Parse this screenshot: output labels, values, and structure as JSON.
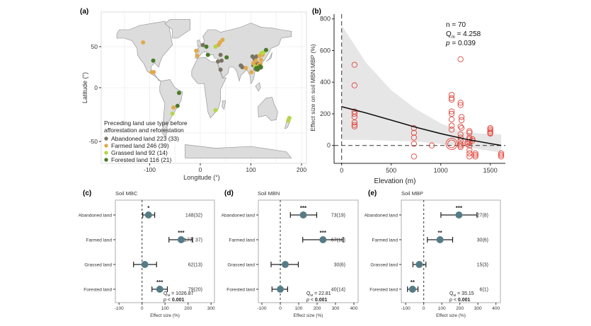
{
  "chart_data": [
    {
      "panel": "(a)",
      "type": "scatter",
      "subtype": "world map",
      "xlabel": "Longitude (°)",
      "ylabel": "Latitude (°)",
      "xticks": [
        -100,
        0,
        100,
        200
      ],
      "yticks": [
        50,
        0,
        -50
      ],
      "legend_title": [
        "Preceding land use type before",
        "afforestation and reforestation"
      ],
      "legend_position": "bottom-left",
      "series": [
        {
          "name": "Abandoned land 223 (33)",
          "color": "#7b7464",
          "points": [
            [
              5,
              52
            ],
            [
              40,
              40
            ],
            [
              42,
              33
            ],
            [
              40,
              22
            ],
            [
              80,
              27
            ],
            [
              83,
              25
            ],
            [
              103,
              38
            ],
            [
              107,
              35
            ],
            [
              111,
              38
            ],
            [
              105,
              27
            ],
            [
              109,
              23
            ],
            [
              112,
              30
            ],
            [
              35,
              32
            ]
          ]
        },
        {
          "name": "Farmed land 246 (39)",
          "color": "#e2a94b",
          "points": [
            [
              -113,
              55
            ],
            [
              -96,
              19
            ],
            [
              -92,
              19
            ],
            [
              -53,
              -23
            ],
            [
              -8,
              45
            ],
            [
              -6,
              39
            ],
            [
              36,
              52
            ],
            [
              39,
              55
            ],
            [
              44,
              58
            ],
            [
              101,
              19
            ],
            [
              105,
              30
            ],
            [
              110,
              33
            ],
            [
              116,
              28
            ],
            [
              120,
              34
            ],
            [
              117,
              39
            ],
            [
              119,
              29
            ],
            [
              90,
              24
            ],
            [
              123,
              40
            ]
          ]
        },
        {
          "name": "Grassed land 92 (14)",
          "color": "#b5d646",
          "points": [
            [
              -55,
              -30
            ],
            [
              30,
              -26
            ],
            [
              174,
              -38
            ],
            [
              176,
              -35
            ],
            [
              30,
              50
            ],
            [
              108,
              26
            ],
            [
              121,
              42
            ],
            [
              125,
              43
            ]
          ]
        },
        {
          "name": "Forested land 116 (21)",
          "color": "#4b7a2b",
          "points": [
            [
              -93,
              33
            ],
            [
              -42,
              -6
            ],
            [
              -45,
              -21
            ],
            [
              12,
              50
            ],
            [
              15,
              40
            ],
            [
              52,
              37
            ],
            [
              130,
              46
            ],
            [
              111,
              24
            ],
            [
              115,
              24
            ],
            [
              120,
              25
            ],
            [
              113,
              22
            ],
            [
              118,
              26
            ]
          ]
        }
      ]
    },
    {
      "panel": "(b)",
      "type": "scatter",
      "xlabel": "Elevation (m)",
      "ylabel": "Effect size on soil MBN:MBP (%)",
      "xlim": [
        -100,
        1700
      ],
      "ylim": [
        -110,
        810
      ],
      "xticks": [
        0,
        500,
        1000,
        1500
      ],
      "yticks": [
        0,
        200,
        400,
        600,
        800
      ],
      "annotation": {
        "n": "n = 70",
        "q": "Q",
        "q_sub": "m",
        "q_val": " = 4.258",
        "p": "p",
        "p_val": " = 0.039"
      },
      "point_color": "#e0463c",
      "points": [
        [
          130,
          510
        ],
        [
          130,
          380
        ],
        [
          130,
          215
        ],
        [
          130,
          200
        ],
        [
          130,
          180
        ],
        [
          130,
          145
        ],
        [
          130,
          130
        ],
        [
          130,
          120
        ],
        [
          730,
          110
        ],
        [
          730,
          80
        ],
        [
          730,
          50
        ],
        [
          730,
          10
        ],
        [
          730,
          -70
        ],
        [
          910,
          0
        ],
        [
          1110,
          320
        ],
        [
          1110,
          300
        ],
        [
          1110,
          290
        ],
        [
          1110,
          215
        ],
        [
          1110,
          200
        ],
        [
          1110,
          165
        ],
        [
          1110,
          125
        ],
        [
          1110,
          100
        ],
        [
          1200,
          545
        ],
        [
          1200,
          270
        ],
        [
          1200,
          255
        ],
        [
          1210,
          180
        ],
        [
          1210,
          160
        ],
        [
          1200,
          120
        ],
        [
          1210,
          110
        ],
        [
          1200,
          70
        ],
        [
          1200,
          50
        ],
        [
          1200,
          30
        ],
        [
          1200,
          10
        ],
        [
          1200,
          0
        ],
        [
          1200,
          -10
        ],
        [
          1270,
          20
        ],
        [
          1270,
          10
        ],
        [
          1290,
          90
        ],
        [
          1290,
          80
        ],
        [
          1290,
          50
        ],
        [
          1290,
          40
        ],
        [
          1290,
          20
        ],
        [
          1290,
          0
        ],
        [
          1290,
          -30
        ],
        [
          1290,
          -50
        ],
        [
          1290,
          -70
        ],
        [
          1320,
          40
        ],
        [
          1320,
          30
        ],
        [
          1350,
          -50
        ],
        [
          1350,
          -60
        ],
        [
          1350,
          -70
        ],
        [
          1500,
          110
        ],
        [
          1500,
          100
        ],
        [
          1500,
          90
        ],
        [
          1500,
          80
        ],
        [
          1500,
          75
        ],
        [
          1610,
          -50
        ],
        [
          1610,
          -60
        ],
        [
          1610,
          -70
        ]
      ],
      "large_point": [
        1110,
        10
      ],
      "fit": {
        "x": [
          0,
          250,
          500,
          750,
          1000,
          1250,
          1500,
          1610
        ],
        "y": [
          245,
          205,
          160,
          115,
          75,
          40,
          12,
          0
        ]
      },
      "ci_upper": {
        "x": [
          0,
          250,
          500,
          750,
          1000,
          1200,
          1400,
          1610
        ],
        "y": [
          760,
          520,
          350,
          230,
          140,
          90,
          75,
          70
        ]
      },
      "ci_lower": {
        "x": [
          0,
          250,
          500,
          750,
          1000,
          1200,
          1400,
          1610
        ],
        "y": [
          35,
          35,
          30,
          25,
          10,
          -10,
          -25,
          -45
        ]
      },
      "reference_lines": {
        "x": 0,
        "y": 0
      }
    },
    {
      "panel": "(c)",
      "title": "Soil MBC",
      "type": "forest",
      "xlabel": "Effect size (%)",
      "xticks": [
        -100,
        0,
        100,
        200,
        300
      ],
      "xlim": [
        -120,
        320
      ],
      "rows": [
        {
          "label": "Abandoned land",
          "mean": 28,
          "lo": 3,
          "hi": 55,
          "sig": "*",
          "n": "148(32)"
        },
        {
          "label": "Farmed land",
          "mean": 170,
          "lo": 117,
          "hi": 218,
          "sig": "***",
          "n": "177( 37)"
        },
        {
          "label": "Grassed land",
          "mean": 12,
          "lo": -37,
          "hi": 63,
          "sig": "",
          "n": "62(13)"
        },
        {
          "label": "Forested land",
          "mean": 77,
          "lo": 43,
          "hi": 110,
          "sig": "***",
          "n": "79(20)"
        }
      ],
      "stat_q": "Q",
      "stat_q_sub": "M",
      "stat_q_val": " = 1026.87",
      "stat_p": "p",
      "stat_p_op": " < ",
      "stat_p_val": "0.001"
    },
    {
      "panel": "(d)",
      "title": "Soil MBN",
      "type": "forest",
      "xlabel": "Effect size (%)",
      "xticks": [
        -100,
        0,
        100,
        200,
        300,
        400
      ],
      "xlim": [
        -120,
        420
      ],
      "rows": [
        {
          "label": "Abandoned land",
          "mean": 125,
          "lo": 55,
          "hi": 198,
          "sig": "***",
          "n": "73(19)"
        },
        {
          "label": "Farmed land",
          "mean": 232,
          "lo": 122,
          "hi": 342,
          "sig": "***",
          "n": "67(18)"
        },
        {
          "label": "Grassed land",
          "mean": 27,
          "lo": -50,
          "hi": 98,
          "sig": "",
          "n": "30(6)"
        },
        {
          "label": "Forested land",
          "mean": 0,
          "lo": -45,
          "hi": 40,
          "sig": "",
          "n": "40(14)"
        }
      ],
      "stat_q": "Q",
      "stat_q_sub": "M",
      "stat_q_val": " = 22.81",
      "stat_p": "p",
      "stat_p_op": " < ",
      "stat_p_val": "0.001"
    },
    {
      "panel": "(e)",
      "title": "Soil MBP",
      "type": "forest",
      "xlabel": "Effect size (%)",
      "xticks": [
        -100,
        0,
        100,
        200,
        300,
        400
      ],
      "xlim": [
        -125,
        420
      ],
      "rows": [
        {
          "label": "Abandoned land",
          "mean": 195,
          "lo": 95,
          "hi": 295,
          "sig": "***",
          "n": "27(8)"
        },
        {
          "label": "Farmed land",
          "mean": 90,
          "lo": 20,
          "hi": 160,
          "sig": "**",
          "n": "30(6)"
        },
        {
          "label": "Grassed land",
          "mean": -25,
          "lo": -60,
          "hi": 12,
          "sig": "",
          "n": "15(3)"
        },
        {
          "label": "Forested land",
          "mean": -62,
          "lo": -90,
          "hi": -32,
          "sig": "**",
          "n": "6(1)"
        }
      ],
      "stat_q": "Q",
      "stat_q_sub": "M",
      "stat_q_val": " = 35.15",
      "stat_p": "p",
      "stat_p_op": " < ",
      "stat_p_val": "0.001"
    }
  ],
  "colors": {
    "land": "#dcdcdc",
    "border": "#8a8a8a",
    "point_fill": "#557c86",
    "ci_band": "#e6e6e6"
  }
}
